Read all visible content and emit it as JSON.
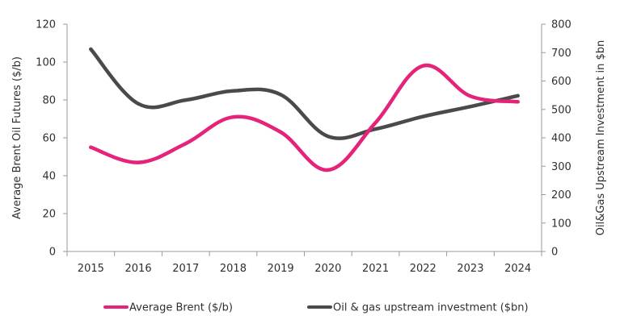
{
  "chart_data": {
    "type": "line",
    "categories": [
      "2015",
      "2016",
      "2017",
      "2018",
      "2019",
      "2020",
      "2021",
      "2022",
      "2023",
      "2024"
    ],
    "series": [
      {
        "name": "Average Brent ($/b)",
        "axis": "left",
        "color": "#e5237a",
        "values": [
          55,
          47,
          57,
          71,
          63,
          43,
          68,
          98,
          82,
          79
        ]
      },
      {
        "name": "Oil & gas upstream investment ($bn)",
        "axis": "right",
        "color": "#4a4a4a",
        "values": [
          712,
          520,
          533,
          565,
          552,
          405,
          431,
          475,
          510,
          548
        ]
      }
    ],
    "ylabel": "Average Brent Oil Futures ($/b)",
    "ylabel_right": "Oil&Gas Upstream Investment in $bn",
    "ylim": [
      0,
      120
    ],
    "ylim_right": [
      0,
      800
    ],
    "yticks": [
      "0",
      "20",
      "40",
      "60",
      "80",
      "100",
      "120"
    ],
    "yticks_right": [
      "0",
      "100",
      "200",
      "300",
      "400",
      "500",
      "600",
      "700",
      "800"
    ],
    "grid": false,
    "legend_position": "bottom"
  }
}
